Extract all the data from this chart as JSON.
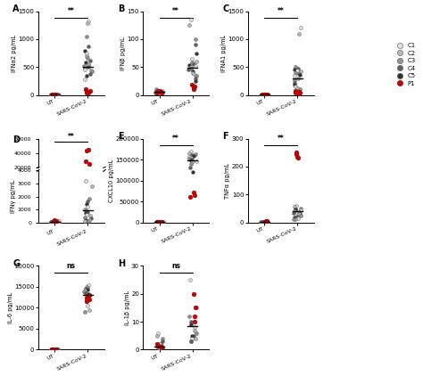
{
  "panels": [
    {
      "label": "A",
      "ylabel": "IFNα2 pg/mL",
      "ylim": [
        0,
        1500
      ],
      "yticks": [
        0,
        500,
        1000,
        1500
      ],
      "sig": "**",
      "ut_controls": [
        8,
        5,
        3,
        6,
        4,
        7,
        5,
        3,
        4,
        6,
        4,
        5,
        3,
        4,
        5,
        3,
        4
      ],
      "sars_controls": [
        1320,
        1280,
        1050,
        870,
        800,
        750,
        700,
        660,
        620,
        590,
        560,
        540,
        520,
        500,
        480,
        460,
        440,
        420,
        380,
        340,
        280
      ],
      "ut_patients": [
        12,
        8,
        6,
        5
      ],
      "sars_patients": [
        100,
        80,
        60,
        50,
        40
      ]
    },
    {
      "label": "B",
      "ylabel": "IFNβ pg/mL",
      "ylim": [
        0,
        150
      ],
      "yticks": [
        0,
        50,
        100,
        150
      ],
      "sig": "**",
      "ut_controls": [
        8,
        6,
        10,
        5,
        7,
        8,
        6,
        5,
        4,
        6,
        7,
        5,
        4,
        6,
        5,
        4,
        6
      ],
      "sars_controls": [
        135,
        125,
        100,
        90,
        75,
        65,
        60,
        58,
        56,
        54,
        52,
        50,
        48,
        45,
        42,
        40,
        38,
        35,
        30,
        25
      ],
      "ut_patients": [
        8,
        5,
        7,
        4
      ],
      "sars_patients": [
        18,
        15,
        13,
        10
      ]
    },
    {
      "label": "C",
      "ylabel": "IFNA1 pg/mL",
      "ylim": [
        0,
        1500
      ],
      "yticks": [
        0,
        500,
        1000,
        1500
      ],
      "sig": "**",
      "ut_controls": [
        5,
        8,
        3,
        4,
        2,
        6,
        7,
        5,
        3,
        4,
        5,
        6,
        4,
        3,
        5,
        4,
        3
      ],
      "sars_controls": [
        1200,
        1100,
        500,
        480,
        460,
        440,
        420,
        400,
        380,
        360,
        340,
        300,
        260,
        220,
        180,
        150,
        120,
        100
      ],
      "ut_patients": [
        10,
        8,
        12,
        5
      ],
      "sars_patients": [
        80,
        60,
        50,
        40,
        30
      ]
    },
    {
      "label": "D",
      "ylabel": "IFNγ pg/mL",
      "ylim_lower": [
        0,
        4000
      ],
      "ylim_upper": [
        20000,
        60000
      ],
      "yticks_lower": [
        0,
        1000,
        2000,
        3000,
        4000
      ],
      "yticks_upper": [
        20000,
        40000,
        60000
      ],
      "sig": "**",
      "ut_controls": [
        80,
        60,
        50,
        40,
        30,
        20,
        15,
        10,
        8,
        6,
        5,
        4,
        3,
        2,
        2
      ],
      "sars_controls": [
        3200,
        2800,
        1800,
        1600,
        1400,
        1200,
        1000,
        900,
        800,
        700,
        600,
        500,
        400,
        300,
        200,
        150,
        100,
        80
      ],
      "ut_patients": [
        200,
        100,
        80,
        60
      ],
      "sars_patients": [
        45000,
        43000,
        28000,
        25000
      ]
    },
    {
      "label": "E",
      "ylabel": "CXCL10 pg/mL",
      "ylim": [
        0,
        200000
      ],
      "yticks": [
        0,
        50000,
        100000,
        150000,
        200000
      ],
      "sig": "**",
      "ut_controls": [
        2000,
        1500,
        1000,
        800,
        600,
        500,
        400,
        300,
        200,
        150,
        100,
        80,
        60,
        50,
        40
      ],
      "sars_controls": [
        170000,
        165000,
        162000,
        160000,
        158000,
        156000,
        154000,
        152000,
        150000,
        148000,
        145000,
        143000,
        140000,
        130000,
        120000
      ],
      "ut_patients": [
        500,
        400,
        300,
        200
      ],
      "sars_patients": [
        72000,
        65000,
        60000
      ]
    },
    {
      "label": "F",
      "ylabel": "TNFα pg/mL",
      "ylim": [
        0,
        300
      ],
      "yticks": [
        0,
        100,
        200,
        300
      ],
      "sig": "**",
      "ut_controls": [
        3,
        2,
        4,
        2,
        1,
        3,
        2,
        1,
        2,
        3,
        1,
        2,
        1,
        2,
        1
      ],
      "sars_controls": [
        60,
        55,
        50,
        48,
        45,
        42,
        40,
        38,
        35,
        32,
        30,
        28,
        25,
        22,
        18,
        15,
        12,
        10
      ],
      "ut_patients": [
        5,
        3,
        4,
        2
      ],
      "sars_patients": [
        250,
        245,
        235,
        230
      ]
    },
    {
      "label": "G",
      "ylabel": "IL-6 pg/mL",
      "ylim": [
        0,
        20000
      ],
      "yticks": [
        0,
        5000,
        10000,
        15000,
        20000
      ],
      "sig": "ns",
      "ut_controls": [
        100,
        80,
        60,
        50,
        40,
        30,
        20,
        15,
        10,
        8,
        6,
        5,
        4,
        3,
        2
      ],
      "sars_controls": [
        15500,
        15000,
        14800,
        14500,
        14300,
        14200,
        14000,
        13800,
        13500,
        13200,
        13000,
        12800,
        12500,
        12000,
        11500,
        10500,
        9500,
        9000
      ],
      "ut_patients": [
        200,
        150,
        100,
        80
      ],
      "sars_patients": [
        13000,
        12500,
        12000,
        11500
      ]
    },
    {
      "label": "H",
      "ylabel": "IL-1β pg/mL",
      "ylim": [
        0,
        30
      ],
      "yticks": [
        0,
        10,
        20,
        30
      ],
      "sig": "ns",
      "ut_controls": [
        6,
        5,
        4,
        3,
        2,
        2,
        1.5,
        1,
        1,
        0.8,
        0.6,
        0.5,
        0.4,
        0.3,
        0.2
      ],
      "sars_controls": [
        25,
        15,
        12,
        10,
        9,
        8,
        7,
        6,
        5,
        5,
        4,
        4,
        3,
        3
      ],
      "ut_patients": [
        2,
        1.5,
        1,
        0.8
      ],
      "sars_patients": [
        20,
        15,
        12,
        10
      ]
    }
  ],
  "legend_labels": [
    "C1",
    "C2",
    "C3",
    "C4",
    "C5",
    "P1"
  ],
  "legend_colors": [
    "#e0e0e0",
    "#b8b8b8",
    "#909090",
    "#606060",
    "#303030",
    "#cc0000"
  ],
  "control_colors": [
    "#e0e0e0",
    "#b8b8b8",
    "#909090",
    "#606060",
    "#303030"
  ],
  "patient_color": "#cc0000",
  "xlabel_ut": "UT",
  "xlabel_sars": "SARS-CoV-2",
  "background_color": "#ffffff"
}
